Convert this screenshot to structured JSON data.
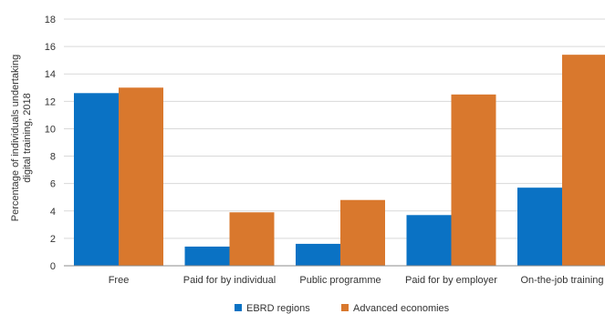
{
  "chart_data": {
    "type": "bar",
    "title": "",
    "xlabel": "",
    "ylabel_lines": [
      "Percentage of individuals undertaking",
      "digital training, 2018"
    ],
    "categories": [
      "Free",
      "Paid for by individual",
      "Public programme",
      "Paid for by employer",
      "On-the-job training"
    ],
    "series": [
      {
        "name": "EBRD regions",
        "color": "#0a72c4",
        "values": [
          12.6,
          1.4,
          1.6,
          3.7,
          5.7
        ]
      },
      {
        "name": "Advanced economies",
        "color": "#d9782d",
        "values": [
          13.0,
          3.9,
          4.8,
          12.5,
          15.4
        ]
      }
    ],
    "ylim": [
      0,
      18
    ],
    "yticks": [
      0,
      2,
      4,
      6,
      8,
      10,
      12,
      14,
      16,
      18
    ],
    "grid": true,
    "legend_position": "bottom-center"
  }
}
